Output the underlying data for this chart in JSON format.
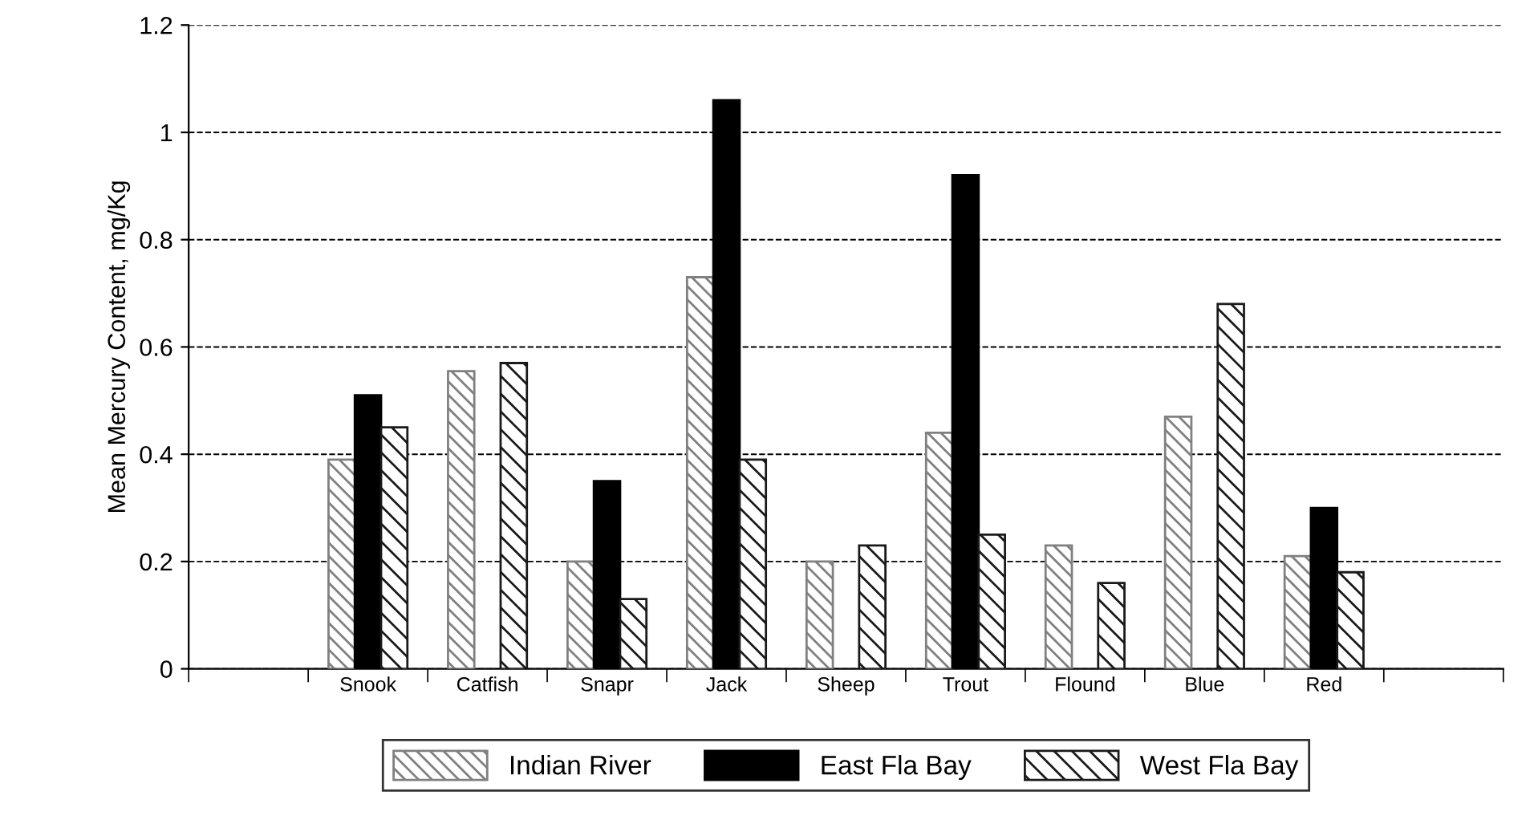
{
  "chart_data": {
    "type": "bar",
    "ylabel": "Mean Mercury Content, mg/Kg",
    "categories": [
      null,
      "Snook",
      "Catfish",
      "Snapr",
      "Jack",
      "Sheep",
      "Trout",
      "Flound",
      "Blue",
      "Red",
      null
    ],
    "series": [
      {
        "name": "Indian River",
        "color": "#808080",
        "values": [
          null,
          0.39,
          0.555,
          0.2,
          0.73,
          0.2,
          0.44,
          0.23,
          0.47,
          0.21,
          null
        ]
      },
      {
        "name": "East Fla Bay",
        "color": "#000000",
        "values": [
          null,
          0.51,
          null,
          0.35,
          1.06,
          null,
          0.92,
          null,
          null,
          0.3,
          null
        ]
      },
      {
        "name": "West Fla Bay",
        "color": "#1a1a1a",
        "values": [
          null,
          0.45,
          0.57,
          0.13,
          0.39,
          0.23,
          0.25,
          0.16,
          0.68,
          0.18,
          null
        ]
      }
    ],
    "ylim": [
      0,
      1.2
    ],
    "yticks": [
      0,
      0.2,
      0.4,
      0.6,
      0.8,
      1,
      1.2
    ],
    "grid": "y",
    "legend": "bottom"
  }
}
